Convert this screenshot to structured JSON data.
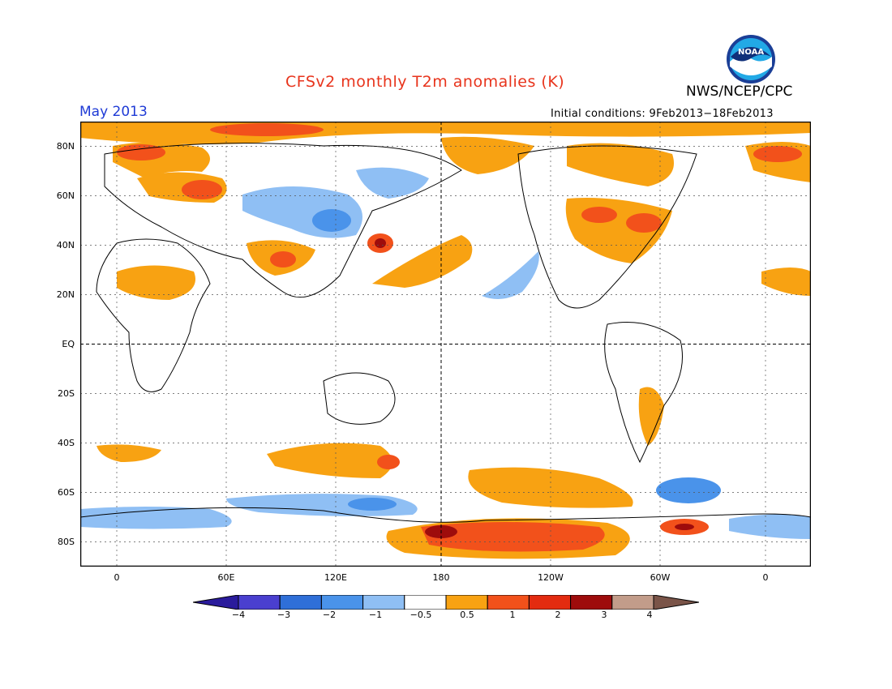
{
  "title": "CFSv2 monthly T2m anomalies (K)",
  "agency": "NWS/NCEP/CPC",
  "logo_text": "NOAA",
  "valid_month": "May 2013",
  "initial_conditions": "Initial conditions: 9Feb2013−18Feb2013",
  "map": {
    "projection": "equirectangular",
    "lon_range": [
      -20,
      380
    ],
    "lat_range": [
      -90,
      90
    ],
    "grid": "dotted",
    "lat_labels": [
      "80N",
      "60N",
      "40N",
      "20N",
      "EQ",
      "20S",
      "40S",
      "60S",
      "80S"
    ],
    "lon_labels": [
      "0",
      "60E",
      "120E",
      "180",
      "120W",
      "60W",
      "0"
    ]
  },
  "colorbar": {
    "labels": [
      "−4",
      "−3",
      "−2",
      "−1",
      "−0.5",
      "0.5",
      "1",
      "2",
      "3",
      "4"
    ],
    "colors": [
      "#2a1b9c",
      "#4a3fcf",
      "#2f6fd8",
      "#4a93ea",
      "#8fbff4",
      "#ffffff",
      "#f8a212",
      "#f2511b",
      "#e32b10",
      "#9e0c0c",
      "#c29c8a",
      "#7a5448"
    ]
  },
  "colors": {
    "title": "#e8341c",
    "month": "#1f3bd6"
  }
}
